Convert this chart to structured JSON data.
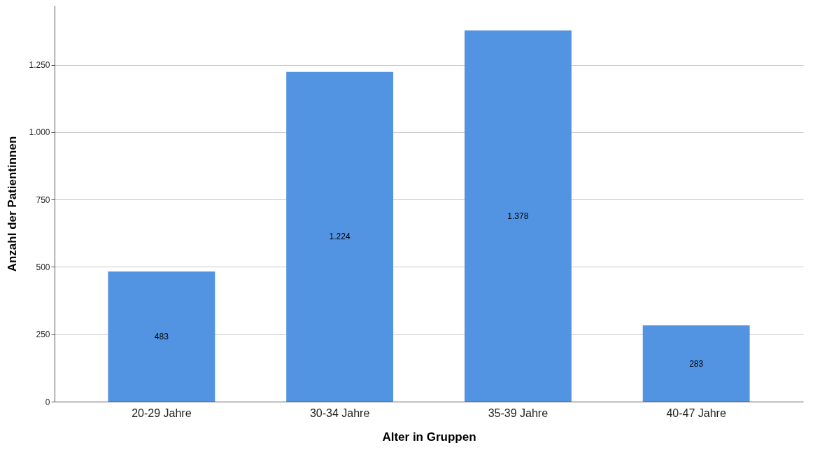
{
  "chart_data": {
    "type": "bar",
    "xlabel": "Alter in Gruppen",
    "ylabel": "Anzahl der Patientinnen",
    "categories": [
      "20-29 Jahre",
      "30-34 Jahre",
      "35-39 Jahre",
      "40-47 Jahre"
    ],
    "values": [
      483,
      1224,
      1378,
      283
    ],
    "value_labels": [
      "483",
      "1.224",
      "1.378",
      "283"
    ],
    "color": "#5294e2",
    "ylim": [
      0,
      1470
    ],
    "yticks": [
      0,
      250,
      500,
      750,
      {
        "value": 1000,
        "label": "1.000"
      },
      {
        "value": 1250,
        "label": "1.250"
      }
    ],
    "grid": "y"
  }
}
